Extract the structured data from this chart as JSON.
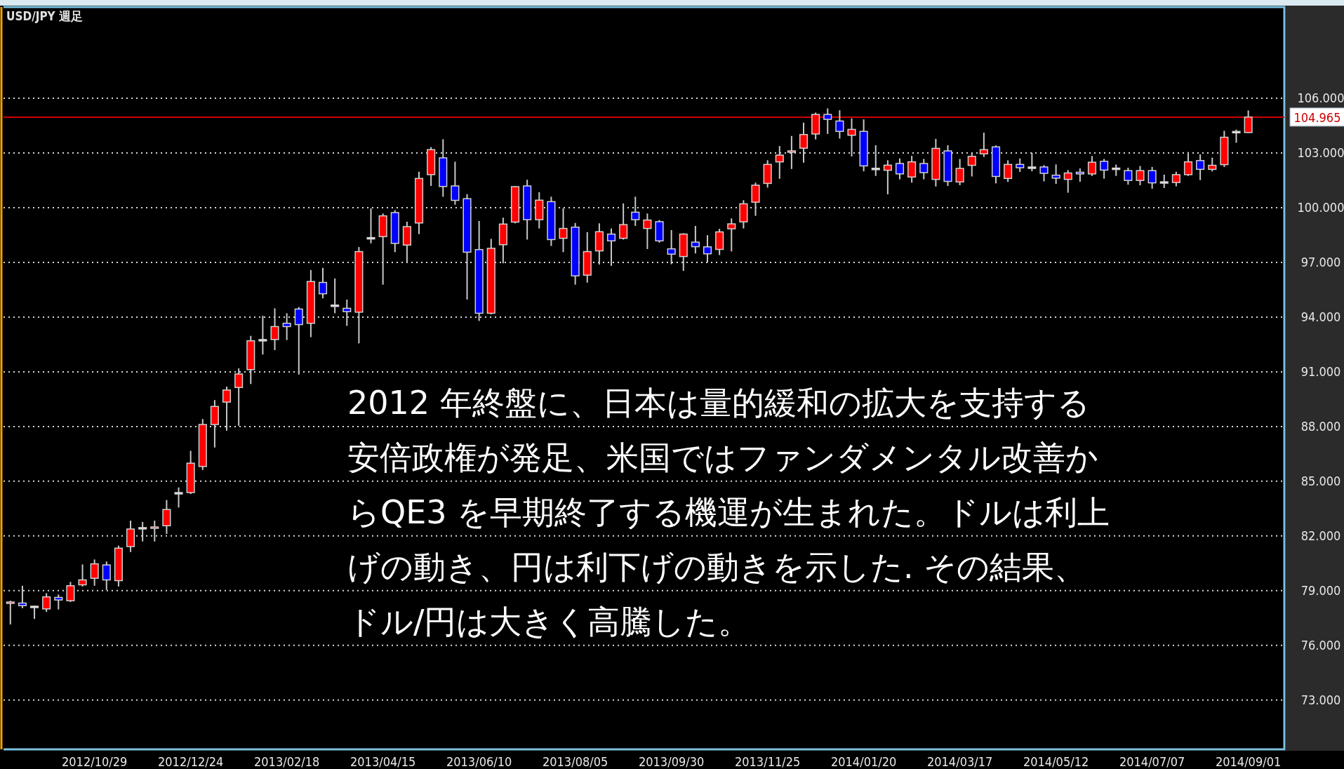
{
  "chart_data": {
    "type": "candlestick",
    "title": "USD/JPY 週足",
    "annotations": [
      "2012 年終盤に、日本は量的緩和の拡大を支持する安倍政権が発足、米国ではファンダメンタル改善からQE3 を早期終了する機運が生まれた。ドルは利上げの動き、円は利下げの動きを示した. その結果、ドル/円は大きく高騰した。"
    ],
    "x": [
      "2012-09-10",
      "2012-09-17",
      "2012-09-24",
      "2012-10-01",
      "2012-10-08",
      "2012-10-15",
      "2012-10-22",
      "2012-10-29",
      "2012-11-05",
      "2012-11-12",
      "2012-11-19",
      "2012-11-26",
      "2012-12-03",
      "2012-12-10",
      "2012-12-17",
      "2012-12-24",
      "2012-12-31",
      "2013-01-07",
      "2013-01-14",
      "2013-01-21",
      "2013-01-28",
      "2013-02-04",
      "2013-02-11",
      "2013-02-18",
      "2013-02-25",
      "2013-03-04",
      "2013-03-11",
      "2013-03-18",
      "2013-03-25",
      "2013-04-01",
      "2013-04-08",
      "2013-04-15",
      "2013-04-22",
      "2013-04-29",
      "2013-05-06",
      "2013-05-13",
      "2013-05-20",
      "2013-05-27",
      "2013-06-03",
      "2013-06-10",
      "2013-06-17",
      "2013-06-24",
      "2013-07-01",
      "2013-07-08",
      "2013-07-15",
      "2013-07-22",
      "2013-07-29",
      "2013-08-05",
      "2013-08-12",
      "2013-08-19",
      "2013-08-26",
      "2013-09-02",
      "2013-09-09",
      "2013-09-16",
      "2013-09-23",
      "2013-09-30",
      "2013-10-07",
      "2013-10-14",
      "2013-10-21",
      "2013-10-28",
      "2013-11-04",
      "2013-11-11",
      "2013-11-18",
      "2013-11-25",
      "2013-12-02",
      "2013-12-09",
      "2013-12-16",
      "2013-12-23",
      "2013-12-30",
      "2014-01-06",
      "2014-01-13",
      "2014-01-20",
      "2014-01-27",
      "2014-02-03",
      "2014-02-10",
      "2014-02-17",
      "2014-02-24",
      "2014-03-03",
      "2014-03-10",
      "2014-03-17",
      "2014-03-24",
      "2014-03-31",
      "2014-04-07",
      "2014-04-14",
      "2014-04-21",
      "2014-04-28",
      "2014-05-05",
      "2014-05-12",
      "2014-05-19",
      "2014-05-26",
      "2014-06-02",
      "2014-06-09",
      "2014-06-16",
      "2014-06-23",
      "2014-06-30",
      "2014-07-07",
      "2014-07-14",
      "2014-07-21",
      "2014-07-28",
      "2014-08-04",
      "2014-08-11",
      "2014-08-18",
      "2014-08-25",
      "2014-09-01"
    ],
    "ohlc": [
      [
        78.32,
        78.45,
        77.15,
        78.36
      ],
      [
        78.32,
        79.27,
        78.04,
        78.18
      ],
      [
        78.11,
        78.18,
        77.45,
        78.11
      ],
      [
        78.0,
        78.86,
        77.84,
        78.66
      ],
      [
        78.63,
        78.79,
        77.97,
        78.49
      ],
      [
        78.45,
        79.48,
        78.38,
        79.27
      ],
      [
        79.32,
        80.44,
        79.23,
        79.59
      ],
      [
        79.68,
        80.71,
        79.27,
        80.47
      ],
      [
        80.41,
        80.6,
        79.04,
        79.59
      ],
      [
        79.55,
        81.47,
        79.23,
        81.33
      ],
      [
        81.42,
        82.84,
        81.12,
        82.38
      ],
      [
        82.42,
        82.77,
        81.7,
        82.42
      ],
      [
        82.42,
        82.84,
        81.7,
        82.49
      ],
      [
        82.56,
        83.97,
        82.11,
        83.45
      ],
      [
        84.34,
        84.66,
        83.56,
        84.34
      ],
      [
        84.38,
        86.67,
        84.3,
        85.99
      ],
      [
        85.81,
        88.41,
        85.62,
        88.11
      ],
      [
        88.11,
        89.45,
        86.85,
        89.1
      ],
      [
        89.34,
        90.19,
        87.77,
        90.0
      ],
      [
        90.14,
        91.19,
        88.04,
        90.88
      ],
      [
        91.12,
        92.97,
        90.33,
        92.7
      ],
      [
        92.73,
        94.07,
        91.95,
        92.73
      ],
      [
        92.77,
        94.48,
        92.19,
        93.48
      ],
      [
        93.66,
        94.21,
        92.74,
        93.48
      ],
      [
        94.44,
        94.55,
        90.85,
        93.59
      ],
      [
        93.66,
        96.58,
        92.9,
        95.95
      ],
      [
        95.9,
        96.7,
        95.03,
        95.28
      ],
      [
        94.62,
        96.12,
        94.21,
        94.62
      ],
      [
        94.48,
        94.96,
        93.52,
        94.3
      ],
      [
        94.27,
        97.84,
        92.56,
        97.59
      ],
      [
        98.32,
        99.96,
        98.04,
        98.32
      ],
      [
        98.41,
        99.68,
        95.78,
        99.55
      ],
      [
        99.73,
        99.86,
        97.56,
        98.04
      ],
      [
        97.95,
        99.23,
        97.01,
        98.96
      ],
      [
        99.16,
        101.97,
        98.55,
        101.6
      ],
      [
        101.81,
        103.32,
        101.19,
        103.18
      ],
      [
        102.73,
        103.75,
        100.6,
        101.16
      ],
      [
        101.19,
        102.52,
        100.16,
        100.4
      ],
      [
        100.49,
        100.74,
        94.96,
        97.56
      ],
      [
        97.7,
        99.27,
        93.79,
        94.21
      ],
      [
        94.21,
        98.29,
        94.15,
        97.77
      ],
      [
        97.97,
        99.45,
        96.95,
        99.1
      ],
      [
        99.21,
        101.19,
        99.14,
        101.15
      ],
      [
        101.19,
        101.53,
        98.25,
        99.34
      ],
      [
        99.34,
        100.85,
        98.86,
        100.41
      ],
      [
        100.33,
        100.6,
        97.9,
        98.25
      ],
      [
        98.32,
        99.96,
        97.56,
        98.86
      ],
      [
        98.93,
        99.16,
        95.78,
        96.26
      ],
      [
        96.3,
        98.66,
        95.89,
        97.59
      ],
      [
        97.63,
        99.14,
        96.88,
        98.68
      ],
      [
        98.55,
        98.86,
        96.81,
        98.18
      ],
      [
        98.32,
        100.23,
        98.25,
        99.07
      ],
      [
        99.75,
        100.6,
        99.0,
        99.34
      ],
      [
        98.86,
        99.68,
        97.73,
        99.32
      ],
      [
        99.23,
        99.32,
        98.08,
        98.18
      ],
      [
        97.74,
        98.77,
        96.9,
        97.45
      ],
      [
        97.32,
        98.6,
        96.53,
        98.55
      ],
      [
        98.11,
        99.0,
        97.49,
        97.86
      ],
      [
        97.85,
        98.49,
        96.99,
        97.47
      ],
      [
        97.71,
        98.84,
        97.4,
        98.67
      ],
      [
        98.84,
        99.41,
        97.6,
        99.11
      ],
      [
        99.22,
        100.41,
        98.86,
        100.21
      ],
      [
        100.3,
        101.37,
        99.55,
        101.23
      ],
      [
        101.33,
        102.6,
        101.1,
        102.37
      ],
      [
        102.51,
        103.38,
        101.58,
        102.88
      ],
      [
        103.04,
        103.93,
        102.12,
        103.11
      ],
      [
        103.26,
        104.66,
        102.47,
        104.01
      ],
      [
        104.04,
        105.21,
        103.74,
        105.11
      ],
      [
        105.11,
        105.44,
        104.04,
        104.84
      ],
      [
        104.75,
        105.34,
        103.79,
        104.18
      ],
      [
        103.97,
        104.89,
        102.81,
        104.29
      ],
      [
        104.18,
        104.84,
        101.99,
        102.29
      ],
      [
        102.12,
        103.42,
        101.74,
        102.12
      ],
      [
        102.05,
        102.6,
        100.73,
        102.33
      ],
      [
        102.42,
        102.7,
        101.55,
        101.85
      ],
      [
        101.68,
        102.84,
        101.37,
        102.51
      ],
      [
        102.42,
        102.67,
        101.55,
        101.92
      ],
      [
        101.55,
        103.77,
        101.16,
        103.25
      ],
      [
        103.11,
        103.42,
        101.19,
        101.44
      ],
      [
        101.41,
        102.67,
        101.23,
        102.15
      ],
      [
        102.32,
        103.01,
        101.71,
        102.81
      ],
      [
        102.95,
        104.11,
        102.78,
        103.18
      ],
      [
        103.33,
        103.41,
        101.33,
        101.71
      ],
      [
        101.6,
        102.6,
        101.41,
        102.37
      ],
      [
        102.37,
        102.7,
        101.96,
        102.19
      ],
      [
        102.19,
        103.01,
        101.99,
        102.19
      ],
      [
        102.23,
        102.33,
        101.44,
        101.88
      ],
      [
        101.78,
        102.37,
        101.3,
        101.62
      ],
      [
        101.55,
        102.06,
        100.82,
        101.9
      ],
      [
        101.94,
        102.15,
        101.42,
        101.85
      ],
      [
        101.85,
        102.83,
        101.74,
        102.49
      ],
      [
        102.54,
        102.67,
        101.59,
        102.06
      ],
      [
        102.13,
        102.36,
        101.74,
        102.13
      ],
      [
        102.03,
        102.19,
        101.26,
        101.49
      ],
      [
        101.49,
        102.28,
        101.23,
        102.03
      ],
      [
        102.03,
        102.23,
        101.04,
        101.36
      ],
      [
        101.38,
        101.81,
        101.08,
        101.38
      ],
      [
        101.38,
        101.97,
        101.17,
        101.81
      ],
      [
        101.81,
        103.05,
        101.74,
        102.51
      ],
      [
        102.58,
        102.92,
        101.51,
        102.1
      ],
      [
        102.1,
        102.74,
        101.99,
        102.32
      ],
      [
        102.36,
        104.21,
        102.23,
        103.86
      ],
      [
        104.14,
        104.28,
        103.56,
        104.14
      ],
      [
        104.12,
        105.33,
        104.1,
        104.965
      ]
    ],
    "colors": [
      "#ff0000",
      "#0000ff",
      "#ffffff",
      "#ff0000",
      "#0000ff",
      "#ff0000",
      "#ff0000",
      "#ff0000",
      "#0000ff",
      "#ff0000",
      "#ff0000",
      "#ffffff",
      "#ff0000",
      "#ff0000",
      "#ffffff",
      "#ff0000",
      "#ff0000",
      "#ff0000",
      "#ff0000",
      "#ff0000",
      "#ff0000",
      "#ffffff",
      "#ff0000",
      "#0000ff",
      "#0000ff",
      "#ff0000",
      "#0000ff",
      "#ffffff",
      "#0000ff",
      "#ff0000",
      "#ffffff",
      "#ff0000",
      "#0000ff",
      "#ff0000",
      "#ff0000",
      "#ff0000",
      "#0000ff",
      "#0000ff",
      "#0000ff",
      "#0000ff",
      "#ff0000",
      "#ff0000",
      "#ff0000",
      "#0000ff",
      "#ff0000",
      "#0000ff",
      "#ff0000",
      "#0000ff",
      "#ff0000",
      "#ff0000",
      "#0000ff",
      "#ff0000",
      "#0000ff",
      "#ff0000",
      "#0000ff",
      "#0000ff",
      "#ff0000",
      "#0000ff",
      "#0000ff",
      "#ff0000",
      "#ff0000",
      "#ff0000",
      "#ff0000",
      "#ff0000",
      "#ff0000",
      "#ff0000",
      "#ff0000",
      "#ff0000",
      "#0000ff",
      "#0000ff",
      "#ff0000",
      "#0000ff",
      "#ffffff",
      "#ff0000",
      "#0000ff",
      "#ff0000",
      "#0000ff",
      "#ff0000",
      "#0000ff",
      "#ff0000",
      "#ff0000",
      "#ff0000",
      "#0000ff",
      "#ff0000",
      "#0000ff",
      "#ffffff",
      "#0000ff",
      "#0000ff",
      "#ff0000",
      "#0000ff",
      "#ff0000",
      "#0000ff",
      "#ffffff",
      "#0000ff",
      "#ff0000",
      "#0000ff",
      "#ffffff",
      "#ff0000",
      "#ff0000",
      "#0000ff",
      "#ff0000",
      "#ff0000",
      "#ffffff",
      "#ff0000"
    ],
    "xlim": [
      "2012-09-06",
      "2014-09-22"
    ],
    "ylim": [
      70.3,
      111
    ],
    "xticks": [
      {
        "value": "2012-10-29",
        "label": "2012/10/29"
      },
      {
        "value": "2012-12-24",
        "label": "2012/12/24"
      },
      {
        "value": "2013-02-18",
        "label": "2013/02/18"
      },
      {
        "value": "2013-04-15",
        "label": "2013/04/15"
      },
      {
        "value": "2013-06-10",
        "label": "2013/06/10"
      },
      {
        "value": "2013-08-05",
        "label": "2013/08/05"
      },
      {
        "value": "2013-09-30",
        "label": "2013/09/30"
      },
      {
        "value": "2013-11-25",
        "label": "2013/11/25"
      },
      {
        "value": "2014-01-20",
        "label": "2014/01/20"
      },
      {
        "value": "2014-03-17",
        "label": "2014/03/17"
      },
      {
        "value": "2014-05-12",
        "label": "2014/05/12"
      },
      {
        "value": "2014-07-07",
        "label": "2014/07/07"
      },
      {
        "value": "2014-09-01",
        "label": "2014/09/01"
      }
    ],
    "yticks": [
      {
        "value": 73,
        "label": "73.000"
      },
      {
        "value": 76,
        "label": "76.000"
      },
      {
        "value": 79,
        "label": "79.000"
      },
      {
        "value": 82,
        "label": "82.000"
      },
      {
        "value": 85,
        "label": "85.000"
      },
      {
        "value": 88,
        "label": "88.000"
      },
      {
        "value": 91,
        "label": "91.000"
      },
      {
        "value": 94,
        "label": "94.000"
      },
      {
        "value": 97,
        "label": "97.000"
      },
      {
        "value": 100,
        "label": "100.000"
      },
      {
        "value": 103,
        "label": "103.000"
      },
      {
        "value": 106,
        "label": "106.000"
      }
    ],
    "grid": "y",
    "ref_lines": [
      {
        "axis": "y",
        "value": 104.965,
        "label": "104.965",
        "color": "#cc0000"
      }
    ]
  }
}
